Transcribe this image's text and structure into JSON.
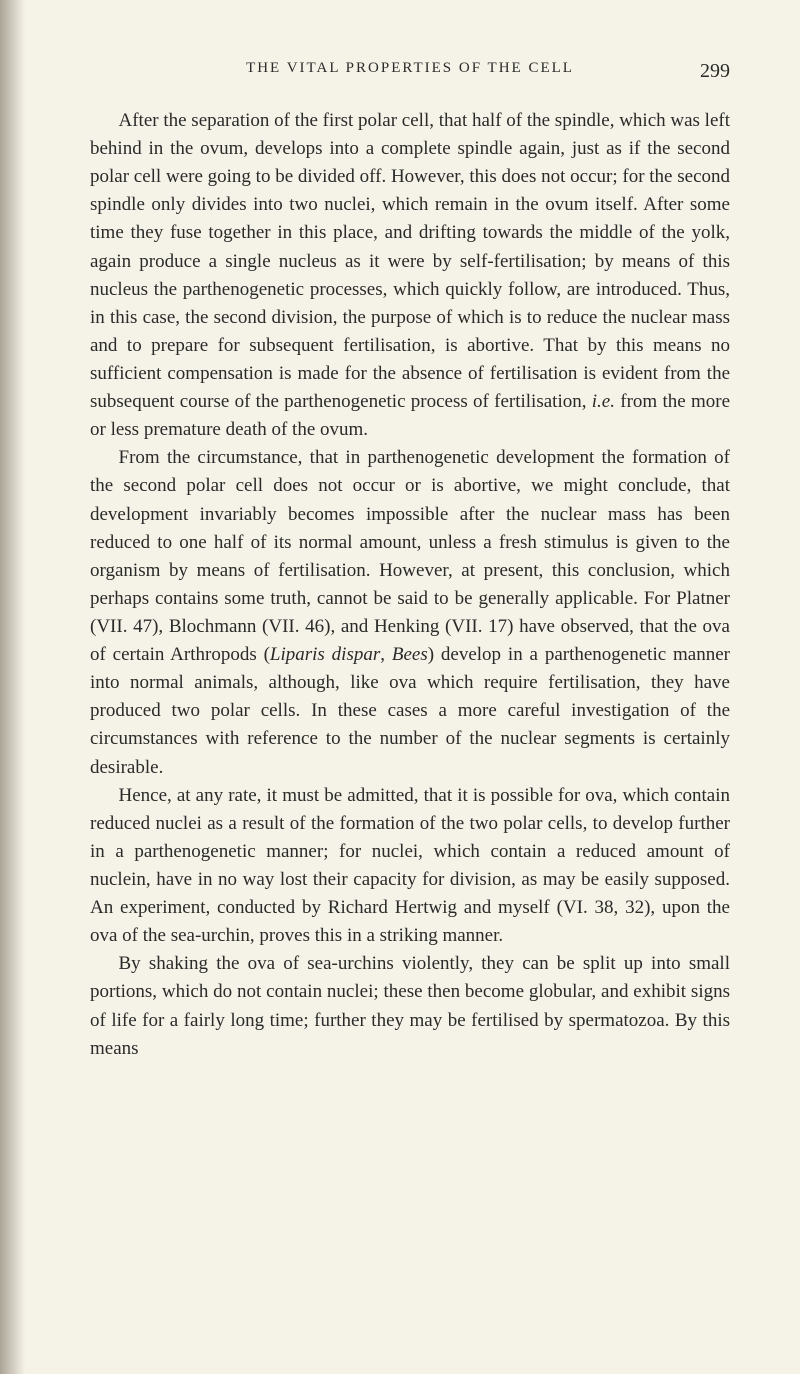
{
  "page": {
    "background_color": "#f5f2e8",
    "text_color": "#2a2a28",
    "font_family": "Georgia, 'Times New Roman', serif",
    "body_font_size": 19,
    "line_height": 1.48
  },
  "header": {
    "running_head": "THE VITAL PROPERTIES OF THE CELL",
    "page_number": "299"
  },
  "paragraphs": [
    "After the separation of the first polar cell, that half of the spindle, which was left behind in the ovum, develops into a complete spindle again, just as if the second polar cell were going to be divided off. However, this does not occur; for the second spindle only divides into two nuclei, which remain in the ovum itself. After some time they fuse together in this place, and drifting towards the middle of the yolk, again produce a single nucleus as it were by self-fertilisation; by means of this nucleus the parthenogenetic processes, which quickly follow, are introduced. Thus, in this case, the second division, the purpose of which is to reduce the nuclear mass and to prepare for subsequent fertilisation, is abortive. That by this means no sufficient compensation is made for the absence of fertilisation is evident from the subsequent course of the parthenogenetic process of fertilisation, <i>i.e.</i> from the more or less premature death of the ovum.",
    "From the circumstance, that in parthenogenetic development the formation of the second polar cell does not occur or is abortive, we might conclude, that development invariably becomes impossible after the nuclear mass has been reduced to one half of its normal amount, unless a fresh stimulus is given to the organism by means of fertilisation. However, at present, this conclusion, which perhaps contains some truth, cannot be said to be generally applicable. For Platner (VII. 47), Blochmann (VII. 46), and Henking (VII. 17) have observed, that the ova of certain Arthropods (<i>Liparis dispar</i>, <i>Bees</i>) develop in a parthenogenetic manner into normal animals, although, like ova which require fertilisation, they have produced two polar cells. In these cases a more careful investigation of the circumstances with reference to the number of the nuclear segments is certainly desirable.",
    "Hence, at any rate, it must be admitted, that it is possible for ova, which contain reduced nuclei as a result of the formation of the two polar cells, to develop further in a parthenogenetic manner; for nuclei, which contain a reduced amount of nuclein, have in no way lost their capacity for division, as may be easily supposed. An experiment, conducted by Richard Hertwig and myself (VI. 38, 32), upon the ova of the sea-urchin, proves this in a striking manner.",
    "By shaking the ova of sea-urchins violently, they can be split up into small portions, which do not contain nuclei; these then become globular, and exhibit signs of life for a fairly long time; further they may be fertilised by spermatozoa. By this means"
  ]
}
